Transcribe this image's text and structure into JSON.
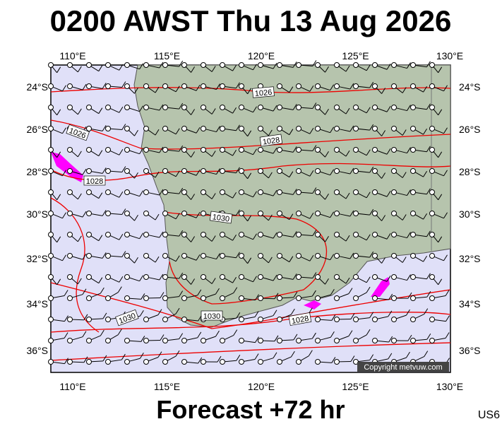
{
  "title": "0200 AWST Thu 13 Aug 2026",
  "footer": "Forecast +72 hr",
  "code": "US6",
  "copyright": "Copyright metvuw.com",
  "lon_labels": [
    "110°E",
    "115°E",
    "120°E",
    "125°E",
    "130°E"
  ],
  "lat_labels": [
    "24°S",
    "26°S",
    "28°S",
    "30°S",
    "32°S",
    "34°S",
    "36°S"
  ],
  "isobar_labels": [
    "1026",
    "1026",
    "1028",
    "1028",
    "1030",
    "1030",
    "1030",
    "1028"
  ]
}
